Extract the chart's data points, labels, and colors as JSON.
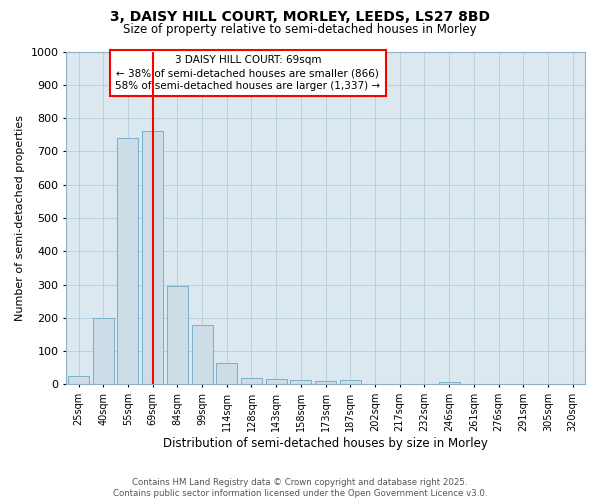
{
  "title_line1": "3, DAISY HILL COURT, MORLEY, LEEDS, LS27 8BD",
  "title_line2": "Size of property relative to semi-detached houses in Morley",
  "xlabel": "Distribution of semi-detached houses by size in Morley",
  "ylabel": "Number of semi-detached properties",
  "categories": [
    "25sqm",
    "40sqm",
    "55sqm",
    "69sqm",
    "84sqm",
    "99sqm",
    "114sqm",
    "128sqm",
    "143sqm",
    "158sqm",
    "173sqm",
    "187sqm",
    "202sqm",
    "217sqm",
    "232sqm",
    "246sqm",
    "261sqm",
    "276sqm",
    "291sqm",
    "305sqm",
    "320sqm"
  ],
  "values": [
    25,
    200,
    740,
    760,
    295,
    178,
    65,
    20,
    15,
    12,
    10,
    12,
    0,
    0,
    0,
    7,
    0,
    0,
    0,
    0,
    0
  ],
  "bar_color": "#ccdde8",
  "bar_edge_color": "#7ab0cc",
  "red_line_index": 3,
  "ylim": [
    0,
    1000
  ],
  "yticks": [
    0,
    100,
    200,
    300,
    400,
    500,
    600,
    700,
    800,
    900,
    1000
  ],
  "annotation_title": "3 DAISY HILL COURT: 69sqm",
  "annotation_line1": "← 38% of semi-detached houses are smaller (866)",
  "annotation_line2": "58% of semi-detached houses are larger (1,337) →",
  "footer_line1": "Contains HM Land Registry data © Crown copyright and database right 2025.",
  "footer_line2": "Contains public sector information licensed under the Open Government Licence v3.0.",
  "fig_bg_color": "#ffffff",
  "plot_bg_color": "#dce8f0",
  "grid_color": "#b8d0e0"
}
